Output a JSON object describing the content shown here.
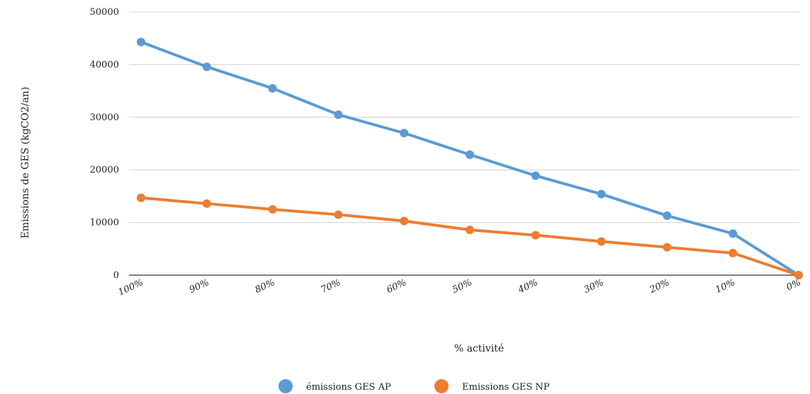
{
  "chart_data": {
    "type": "line",
    "title": "",
    "xlabel": "% activité",
    "ylabel": "Emissions de GES (kgCO2/an)",
    "categories": [
      "100%",
      "90%",
      "80%",
      "70%",
      "60%",
      "50%",
      "40%",
      "30%",
      "20%",
      "10%",
      "0%"
    ],
    "ylim": [
      0,
      50000
    ],
    "yticks": [
      0,
      10000,
      20000,
      30000,
      40000,
      50000
    ],
    "grid": true,
    "legend_position": "bottom",
    "series": [
      {
        "name": "émissions GES AP",
        "color": "#5b9bd5",
        "values": [
          44300,
          39600,
          35500,
          30500,
          27000,
          22900,
          18900,
          15400,
          11300,
          7900,
          0
        ]
      },
      {
        "name": "Emissions GES NP",
        "color": "#ed7d31",
        "values": [
          14700,
          13600,
          12500,
          11500,
          10300,
          8600,
          7600,
          6400,
          5300,
          4200,
          0
        ]
      }
    ]
  }
}
